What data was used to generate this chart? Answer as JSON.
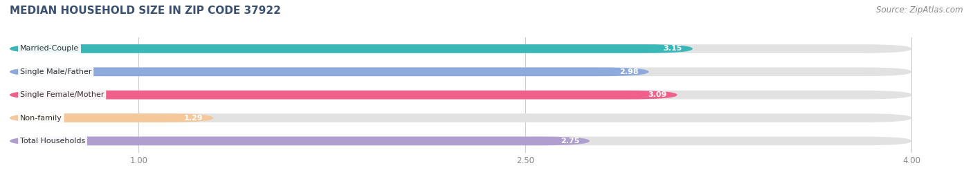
{
  "title": "MEDIAN HOUSEHOLD SIZE IN ZIP CODE 37922",
  "source": "Source: ZipAtlas.com",
  "categories": [
    "Married-Couple",
    "Single Male/Father",
    "Single Female/Mother",
    "Non-family",
    "Total Households"
  ],
  "values": [
    3.15,
    2.98,
    3.09,
    1.29,
    2.75
  ],
  "bar_colors": [
    "#3ab8b8",
    "#8eaadc",
    "#f0608a",
    "#f5c89a",
    "#b09ecf"
  ],
  "xlim": [
    0.5,
    4.2
  ],
  "data_min": 0.5,
  "data_max": 4.0,
  "xticks": [
    1.0,
    2.5,
    4.0
  ],
  "xtick_labels": [
    "1.00",
    "2.50",
    "4.00"
  ],
  "title_color": "#3a5070",
  "title_fontsize": 11,
  "source_fontsize": 8.5,
  "label_fontsize": 8,
  "value_fontsize": 8,
  "bar_bg_color": "#e2e2e2",
  "bar_height": 0.38,
  "figsize": [
    14.06,
    2.69
  ],
  "dpi": 100
}
